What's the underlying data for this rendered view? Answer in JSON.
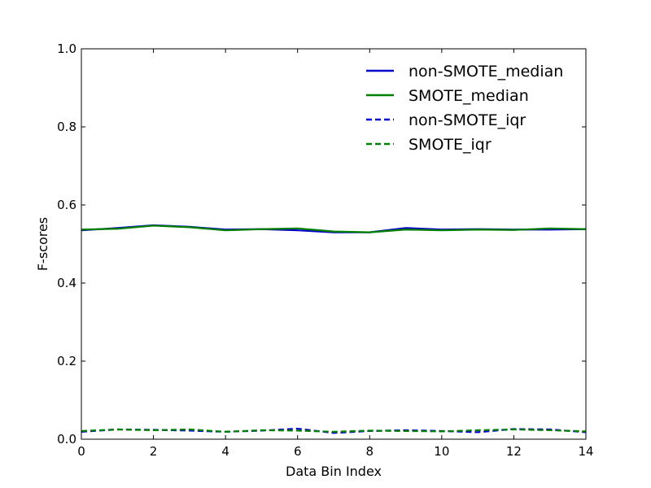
{
  "chart_data": {
    "type": "line",
    "title": "",
    "xlabel": "Data Bin Index",
    "ylabel": "F-scores",
    "xlim": [
      0,
      14
    ],
    "ylim": [
      0.0,
      1.0
    ],
    "xticks": [
      0,
      2,
      4,
      6,
      8,
      10,
      12,
      14
    ],
    "yticks": [
      0.0,
      0.2,
      0.4,
      0.6,
      0.8,
      1.0
    ],
    "xtick_labels": [
      "0",
      "2",
      "4",
      "6",
      "8",
      "10",
      "12",
      "14"
    ],
    "ytick_labels": [
      "0.0",
      "0.2",
      "0.4",
      "0.6",
      "0.8",
      "1.0"
    ],
    "grid": false,
    "legend_position": "top-right",
    "x": [
      0,
      1,
      2,
      3,
      4,
      5,
      6,
      7,
      8,
      9,
      10,
      11,
      12,
      13,
      14
    ],
    "series": [
      {
        "name": "non-SMOTE_median",
        "color": "#0000cc",
        "style": "solid",
        "values": [
          0.535,
          0.541,
          0.548,
          0.544,
          0.537,
          0.538,
          0.535,
          0.53,
          0.53,
          0.541,
          0.537,
          0.538,
          0.537,
          0.537,
          0.538
        ]
      },
      {
        "name": "SMOTE_median",
        "color": "#008000",
        "style": "solid",
        "values": [
          0.537,
          0.539,
          0.547,
          0.543,
          0.535,
          0.538,
          0.54,
          0.532,
          0.53,
          0.537,
          0.535,
          0.537,
          0.536,
          0.54,
          0.538
        ]
      },
      {
        "name": "non-SMOTE_iqr",
        "color": "#0000cc",
        "style": "dashed",
        "values": [
          0.019,
          0.025,
          0.024,
          0.022,
          0.019,
          0.022,
          0.027,
          0.016,
          0.021,
          0.023,
          0.021,
          0.018,
          0.026,
          0.025,
          0.018
        ]
      },
      {
        "name": "SMOTE_iqr",
        "color": "#008000",
        "style": "dashed",
        "values": [
          0.021,
          0.025,
          0.023,
          0.025,
          0.019,
          0.023,
          0.022,
          0.019,
          0.022,
          0.021,
          0.02,
          0.023,
          0.025,
          0.023,
          0.02
        ]
      }
    ]
  }
}
